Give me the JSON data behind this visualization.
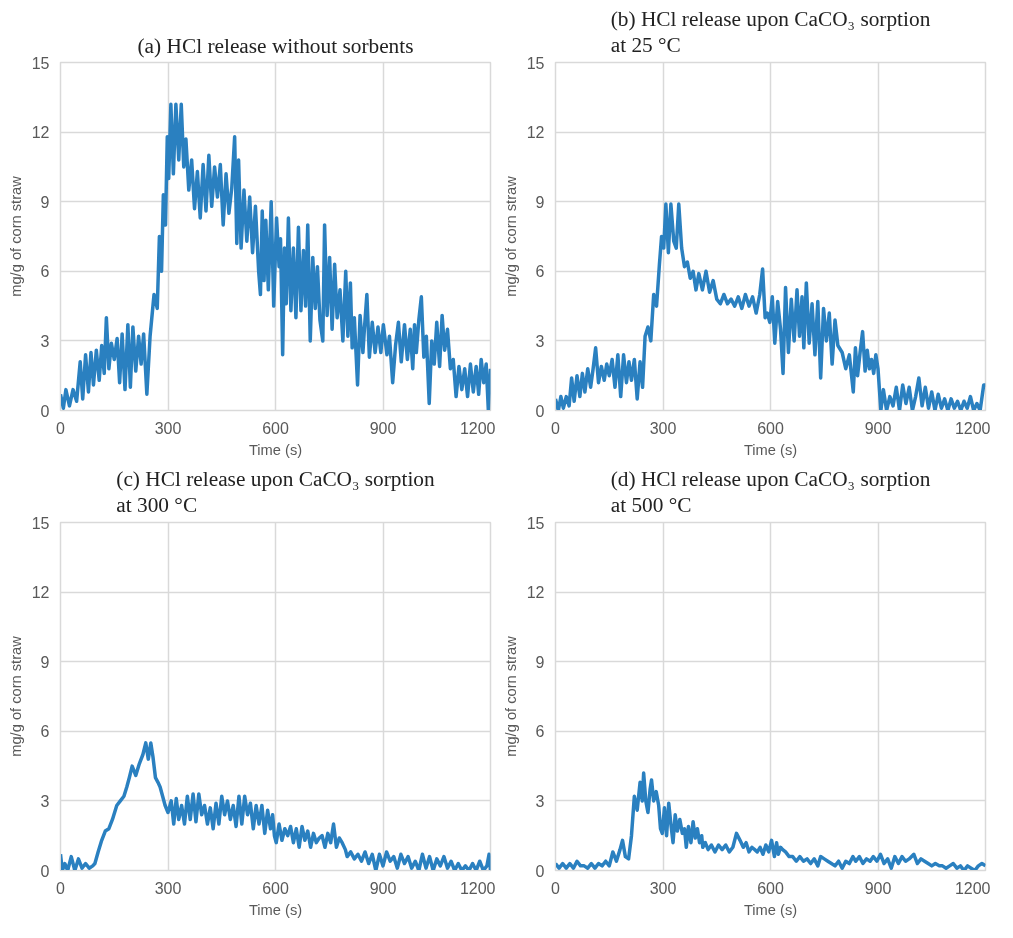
{
  "chart_data": [
    {
      "type": "line",
      "title": "(a) HCl release without sorbents",
      "xlabel": "Time (s)",
      "ylabel": "mg/g of corn straw",
      "xlim": [
        0,
        1200
      ],
      "xticks": [
        0,
        300,
        600,
        900,
        1200
      ],
      "ylim": [
        0,
        15
      ],
      "yticks": [
        0,
        3,
        6,
        9,
        12,
        15
      ],
      "grid": true,
      "line_style": "solid",
      "marker": "none",
      "series": [
        {
          "color": "#2a80c0",
          "x": [
            0,
            8,
            15,
            25,
            35,
            45,
            55,
            62,
            70,
            78,
            85,
            92,
            100,
            108,
            115,
            122,
            128,
            135,
            142,
            150,
            158,
            165,
            172,
            180,
            188,
            195,
            202,
            210,
            218,
            225,
            232,
            241,
            250,
            261,
            270,
            276,
            282,
            287,
            293,
            298,
            302,
            308,
            315,
            322,
            330,
            337,
            344,
            350,
            358,
            366,
            374,
            382,
            390,
            398,
            406,
            414,
            422,
            430,
            438,
            446,
            454,
            462,
            470,
            478,
            486,
            492,
            497,
            504,
            512,
            520,
            528,
            536,
            544,
            553,
            558,
            563,
            568,
            573,
            580,
            588,
            595,
            603,
            610,
            614,
            620,
            625,
            630,
            636,
            643,
            650,
            657,
            664,
            671,
            678,
            684,
            690,
            697,
            704,
            711,
            717,
            724,
            732,
            737,
            744,
            751,
            758,
            765,
            772,
            780,
            788,
            796,
            802,
            809,
            814,
            820,
            829,
            836,
            844,
            848,
            855,
            862,
            870,
            878,
            886,
            894,
            901,
            911,
            918,
            927,
            935,
            943,
            951,
            960,
            968,
            976,
            983,
            988,
            993,
            1000,
            1007,
            1014,
            1021,
            1029,
            1036,
            1043,
            1050,
            1058,
            1065,
            1072,
            1080,
            1088,
            1096,
            1104,
            1112,
            1120,
            1128,
            1136,
            1144,
            1152,
            1160,
            1167,
            1174,
            1181,
            1188,
            1194,
            1200
          ],
          "values": [
            0.7,
            0.1,
            0.9,
            0.2,
            0.9,
            0.4,
            2.1,
            0.5,
            2.4,
            0.8,
            2.5,
            1.1,
            2.6,
            1.3,
            2.8,
            1.6,
            4.0,
            1.8,
            2.9,
            2.2,
            3.1,
            1.2,
            3.3,
            0.9,
            3.7,
            1.0,
            3.6,
            1.7,
            3.2,
            2.0,
            3.3,
            0.7,
            3.2,
            5.0,
            4.4,
            7.5,
            6.0,
            9.3,
            8.0,
            11.8,
            10.0,
            13.2,
            10.2,
            13.2,
            10.8,
            13.2,
            10.5,
            11.7,
            9.5,
            10.8,
            8.7,
            10.3,
            8.3,
            10.6,
            8.6,
            11.0,
            8.8,
            10.5,
            9.2,
            10.6,
            8.0,
            10.2,
            8.5,
            9.6,
            11.8,
            7.2,
            10.8,
            7.0,
            9.5,
            7.3,
            9.2,
            6.8,
            8.8,
            6.0,
            5.0,
            8.6,
            5.6,
            8.2,
            5.2,
            9.0,
            4.5,
            8.3,
            6.2,
            7.4,
            2.4,
            7.0,
            4.6,
            8.3,
            4.3,
            7.0,
            4.0,
            7.9,
            4.3,
            6.9,
            4.5,
            8.0,
            3.0,
            6.6,
            4.4,
            6.2,
            3.9,
            3.0,
            8.0,
            4.1,
            6.6,
            3.5,
            6.3,
            4.0,
            5.2,
            3.0,
            6.0,
            3.2,
            5.5,
            2.7,
            4.0,
            1.1,
            4.1,
            2.5,
            3.5,
            5.0,
            2.3,
            3.8,
            2.5,
            3.6,
            2.5,
            3.7,
            2.4,
            3.2,
            1.2,
            2.8,
            3.8,
            2.1,
            3.7,
            2.2,
            3.5,
            1.8,
            3.7,
            2.5,
            3.9,
            4.9,
            2.3,
            3.2,
            0.3,
            3.0,
            2.0,
            3.8,
            1.9,
            4.1,
            2.6,
            3.5,
            1.8,
            2.2,
            0.6,
            1.9,
            0.9,
            1.8,
            0.6,
            2.0,
            0.8,
            1.9,
            0.7,
            2.2,
            1.2,
            2.0,
            0.0,
            1.8
          ]
        }
      ]
    },
    {
      "type": "line",
      "title": "(b) HCl release upon CaCO₃ sorption\nat 25 °C",
      "xlabel": "Time (s)",
      "ylabel": "mg/g of corn straw",
      "xlim": [
        0,
        1200
      ],
      "xticks": [
        0,
        300,
        600,
        900,
        1200
      ],
      "ylim": [
        0,
        15
      ],
      "yticks": [
        0,
        3,
        6,
        9,
        12,
        15
      ],
      "grid": true,
      "line_style": "solid",
      "marker": "none",
      "series": [
        {
          "color": "#2a80c0",
          "x": [
            0,
            8,
            15,
            22,
            30,
            38,
            45,
            52,
            60,
            68,
            75,
            82,
            90,
            98,
            105,
            112,
            120,
            128,
            136,
            143,
            150,
            158,
            166,
            174,
            182,
            190,
            198,
            205,
            212,
            220,
            228,
            236,
            243,
            250,
            258,
            266,
            274,
            282,
            290,
            296,
            302,
            308,
            315,
            322,
            330,
            337,
            344,
            352,
            360,
            368,
            376,
            384,
            392,
            400,
            410,
            420,
            430,
            440,
            450,
            460,
            470,
            480,
            490,
            500,
            510,
            520,
            530,
            540,
            550,
            560,
            570,
            578,
            585,
            591,
            598,
            605,
            612,
            620,
            628,
            635,
            642,
            650,
            658,
            666,
            674,
            681,
            688,
            693,
            700,
            708,
            716,
            724,
            732,
            740,
            748,
            756,
            764,
            772,
            780,
            788,
            800,
            810,
            820,
            831,
            837,
            843,
            850,
            857,
            864,
            870,
            876,
            882,
            888,
            894,
            900,
            904,
            908,
            915,
            924,
            933,
            942,
            951,
            960,
            969,
            978,
            987,
            996,
            1005,
            1014,
            1023,
            1032,
            1041,
            1050,
            1059,
            1068,
            1077,
            1086,
            1095,
            1104,
            1113,
            1122,
            1131,
            1140,
            1149,
            1158,
            1167,
            1176,
            1185,
            1195,
            1200
          ],
          "values": [
            0.5,
            0.0,
            0.6,
            0.1,
            0.6,
            0.2,
            1.4,
            0.4,
            1.5,
            0.6,
            1.6,
            0.8,
            1.8,
            1.0,
            1.8,
            2.7,
            1.2,
            1.9,
            1.3,
            2.0,
            1.5,
            2.2,
            1.0,
            2.4,
            0.6,
            2.4,
            1.2,
            2.1,
            1.3,
            2.2,
            0.5,
            2.1,
            1.0,
            3.2,
            3.6,
            3.0,
            5.0,
            4.5,
            6.3,
            7.5,
            7.0,
            8.9,
            6.8,
            8.9,
            7.3,
            7.0,
            8.9,
            7.0,
            6.2,
            6.4,
            5.7,
            6.0,
            5.2,
            5.9,
            5.2,
            6.0,
            5.1,
            5.6,
            4.8,
            4.6,
            5.0,
            4.6,
            4.8,
            4.5,
            4.9,
            4.4,
            5.0,
            4.5,
            4.9,
            4.2,
            5.0,
            6.1,
            4.0,
            4.2,
            3.8,
            4.9,
            2.9,
            4.7,
            3.5,
            1.6,
            5.3,
            2.5,
            4.8,
            3.0,
            5.2,
            3.2,
            4.9,
            2.7,
            5.5,
            2.9,
            4.6,
            2.4,
            4.7,
            1.4,
            4.4,
            3.0,
            4.2,
            2.0,
            3.9,
            2.8,
            2.5,
            1.8,
            2.4,
            0.8,
            2.7,
            1.5,
            2.5,
            3.4,
            1.7,
            2.6,
            1.8,
            2.2,
            1.6,
            2.4,
            1.8,
            0.9,
            0.0,
            0.9,
            0.0,
            0.6,
            0.2,
            1.0,
            0.0,
            1.1,
            0.3,
            1.0,
            0.0,
            0.6,
            1.4,
            0.2,
            1.0,
            0.1,
            0.8,
            0.0,
            0.7,
            0.1,
            0.5,
            0.0,
            0.5,
            0.1,
            0.4,
            0.0,
            0.4,
            0.1,
            0.6,
            0.0,
            0.3,
            0.0,
            1.1,
            1.1
          ]
        }
      ]
    },
    {
      "type": "line",
      "title": "(c) HCl release upon CaCO₃ sorption\nat 300 °C",
      "xlabel": "Time (s)",
      "ylabel": "mg/g of corn straw",
      "xlim": [
        0,
        1200
      ],
      "xticks": [
        0,
        300,
        600,
        900,
        1200
      ],
      "ylim": [
        0,
        15
      ],
      "yticks": [
        0,
        3,
        6,
        9,
        12,
        15
      ],
      "grid": true,
      "line_style": "solid",
      "marker": "none",
      "series": [
        {
          "color": "#2a80c0",
          "x": [
            0,
            5,
            12,
            20,
            30,
            40,
            50,
            60,
            70,
            80,
            90,
            96,
            105,
            115,
            125,
            135,
            145,
            157,
            167,
            177,
            185,
            192,
            200,
            210,
            220,
            230,
            238,
            245,
            252,
            258,
            265,
            272,
            278,
            285,
            292,
            300,
            309,
            316,
            323,
            330,
            338,
            346,
            354,
            362,
            370,
            378,
            386,
            394,
            402,
            410,
            418,
            426,
            434,
            442,
            450,
            458,
            466,
            474,
            482,
            490,
            498,
            506,
            514,
            522,
            530,
            538,
            546,
            554,
            562,
            570,
            578,
            586,
            592,
            597,
            602,
            610,
            618,
            626,
            634,
            642,
            650,
            658,
            666,
            674,
            682,
            690,
            698,
            706,
            714,
            722,
            730,
            738,
            746,
            754,
            762,
            770,
            778,
            786,
            795,
            800,
            810,
            820,
            830,
            840,
            850,
            860,
            870,
            880,
            890,
            900,
            910,
            920,
            930,
            940,
            950,
            960,
            970,
            980,
            990,
            1000,
            1010,
            1020,
            1030,
            1040,
            1050,
            1060,
            1070,
            1080,
            1090,
            1100,
            1110,
            1120,
            1130,
            1140,
            1150,
            1160,
            1170,
            1180,
            1190,
            1196,
            1200
          ],
          "values": [
            0.7,
            0.0,
            0.3,
            0.0,
            0.6,
            0.0,
            0.5,
            0.1,
            0.3,
            0.1,
            0.2,
            0.3,
            0.8,
            1.3,
            1.7,
            1.8,
            2.2,
            2.8,
            3.0,
            3.2,
            3.6,
            4.0,
            4.5,
            4.1,
            4.6,
            5.0,
            5.5,
            4.8,
            5.5,
            4.9,
            4.0,
            3.8,
            3.6,
            3.2,
            2.8,
            2.5,
            3.0,
            2.0,
            3.1,
            2.2,
            2.8,
            2.0,
            3.2,
            2.2,
            3.3,
            2.1,
            3.3,
            2.4,
            2.8,
            2.0,
            2.7,
            1.8,
            2.9,
            2.0,
            3.2,
            2.4,
            3.0,
            2.2,
            2.8,
            1.9,
            3.2,
            2.0,
            3.2,
            2.4,
            2.9,
            1.8,
            2.8,
            2.0,
            2.8,
            1.6,
            2.6,
            1.8,
            2.4,
            1.5,
            1.2,
            2.0,
            1.3,
            1.8,
            1.5,
            1.9,
            1.2,
            1.8,
            1.0,
            1.9,
            1.3,
            1.7,
            1.0,
            1.6,
            1.2,
            1.4,
            1.5,
            1.0,
            1.6,
            1.2,
            2.0,
            1.0,
            1.4,
            1.2,
            0.9,
            0.6,
            0.8,
            0.5,
            0.7,
            0.4,
            0.8,
            0.3,
            0.7,
            0.0,
            0.7,
            0.2,
            0.8,
            0.4,
            0.6,
            0.1,
            0.7,
            0.3,
            0.6,
            0.1,
            0.4,
            0.0,
            0.7,
            0.1,
            0.6,
            0.0,
            0.5,
            0.2,
            0.6,
            0.1,
            0.4,
            0.0,
            0.3,
            0.0,
            0.2,
            0.0,
            0.3,
            0.0,
            0.4,
            0.0,
            0.2,
            0.7,
            0.0
          ]
        }
      ]
    },
    {
      "type": "line",
      "title": "(d) HCl release upon CaCO₃ sorption\nat 500  °C",
      "xlabel": "Time (s)",
      "ylabel": "mg/g of corn straw",
      "xlim": [
        0,
        1200
      ],
      "xticks": [
        0,
        300,
        600,
        900,
        1200
      ],
      "ylim": [
        0,
        15
      ],
      "yticks": [
        0,
        3,
        6,
        9,
        12,
        15
      ],
      "grid": true,
      "line_style": "solid",
      "marker": "none",
      "series": [
        {
          "color": "#2a80c0",
          "x": [
            0,
            10,
            20,
            30,
            40,
            50,
            60,
            70,
            80,
            90,
            100,
            110,
            120,
            130,
            140,
            150,
            160,
            170,
            180,
            187,
            195,
            204,
            212,
            220,
            228,
            236,
            242,
            246,
            252,
            258,
            264,
            268,
            274,
            281,
            288,
            293,
            298,
            304,
            310,
            316,
            322,
            328,
            334,
            340,
            347,
            354,
            360,
            365,
            371,
            378,
            384,
            390,
            396,
            402,
            408,
            411,
            418,
            426,
            435,
            445,
            455,
            465,
            475,
            485,
            495,
            505,
            515,
            524,
            532,
            540,
            548,
            556,
            563,
            571,
            579,
            587,
            595,
            603,
            611,
            617,
            622,
            628,
            634,
            642,
            652,
            662,
            672,
            682,
            692,
            702,
            712,
            722,
            732,
            740,
            750,
            760,
            770,
            780,
            790,
            800,
            810,
            820,
            830,
            838,
            848,
            858,
            868,
            878,
            887,
            897,
            907,
            917,
            927,
            937,
            947,
            957,
            967,
            977,
            987,
            1000,
            1010,
            1020,
            1030,
            1040,
            1050,
            1060,
            1071,
            1080,
            1090,
            1100,
            1110,
            1120,
            1130,
            1140,
            1150,
            1160,
            1170,
            1180,
            1190,
            1200
          ],
          "values": [
            0.3,
            0.1,
            0.3,
            0.1,
            0.3,
            0.1,
            0.4,
            0.2,
            0.2,
            0.1,
            0.3,
            0.1,
            0.3,
            0.2,
            0.4,
            0.2,
            0.8,
            0.4,
            0.9,
            1.3,
            0.6,
            0.5,
            1.5,
            3.2,
            2.6,
            3.8,
            3.0,
            4.2,
            3.0,
            2.5,
            3.5,
            3.9,
            3.0,
            3.4,
            2.8,
            1.8,
            1.6,
            2.7,
            1.5,
            2.9,
            2.0,
            1.2,
            2.4,
            1.7,
            2.2,
            1.6,
            1.8,
            1.0,
            1.9,
            1.2,
            2.1,
            1.4,
            1.8,
            1.2,
            1.5,
            1.0,
            1.2,
            0.9,
            1.1,
            0.8,
            1.1,
            0.9,
            1.1,
            0.8,
            1.0,
            1.6,
            1.3,
            1.0,
            1.2,
            0.8,
            1.0,
            0.9,
            0.8,
            1.0,
            0.7,
            1.1,
            0.8,
            1.3,
            0.6,
            1.2,
            0.7,
            1.0,
            0.9,
            0.8,
            0.6,
            0.6,
            0.4,
            0.6,
            0.4,
            0.5,
            0.3,
            0.5,
            0.2,
            0.6,
            0.5,
            0.4,
            0.3,
            0.2,
            0.4,
            0.1,
            0.4,
            0.3,
            0.6,
            0.4,
            0.6,
            0.3,
            0.5,
            0.4,
            0.6,
            0.4,
            0.7,
            0.3,
            0.5,
            0.1,
            0.6,
            0.3,
            0.6,
            0.4,
            0.5,
            0.7,
            0.3,
            0.5,
            0.4,
            0.3,
            0.2,
            0.3,
            0.2,
            0.2,
            0.1,
            0.2,
            0.3,
            0.1,
            0.2,
            0.0,
            0.2,
            0.1,
            0.0,
            0.2,
            0.3,
            0.2
          ]
        }
      ]
    }
  ]
}
